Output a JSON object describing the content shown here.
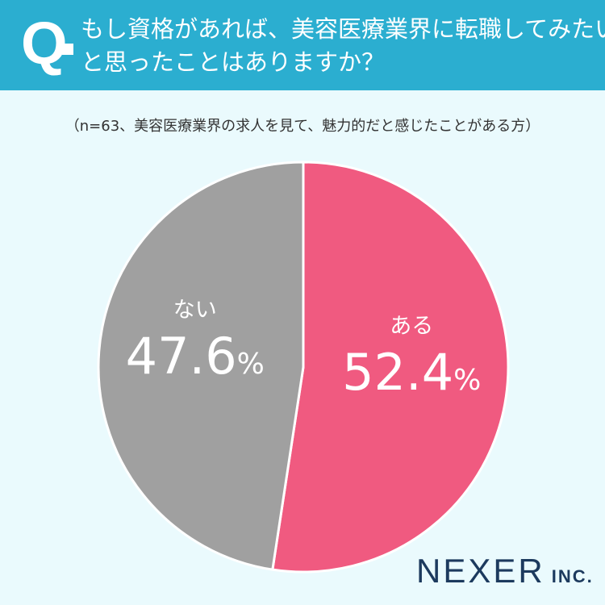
{
  "question": {
    "mark": "Q",
    "line1": "もし資格があれば、美容医療業界に転職してみたい",
    "line2": "と思ったことはありますか？"
  },
  "note": "（n=63、美容医療業界の求人を見て、魅力的だと感じたことがある方）",
  "chart_data": {
    "type": "pie",
    "categories": [
      "ある",
      "ない"
    ],
    "values": [
      52.4,
      47.6
    ],
    "value_labels": [
      "52.4",
      "47.6"
    ],
    "unit": "%",
    "colors": [
      "#f05a80",
      "#a0a0a0"
    ],
    "start_angle": "top",
    "direction": "clockwise"
  },
  "logo": {
    "main": "NEXER",
    "sub": "INC."
  }
}
